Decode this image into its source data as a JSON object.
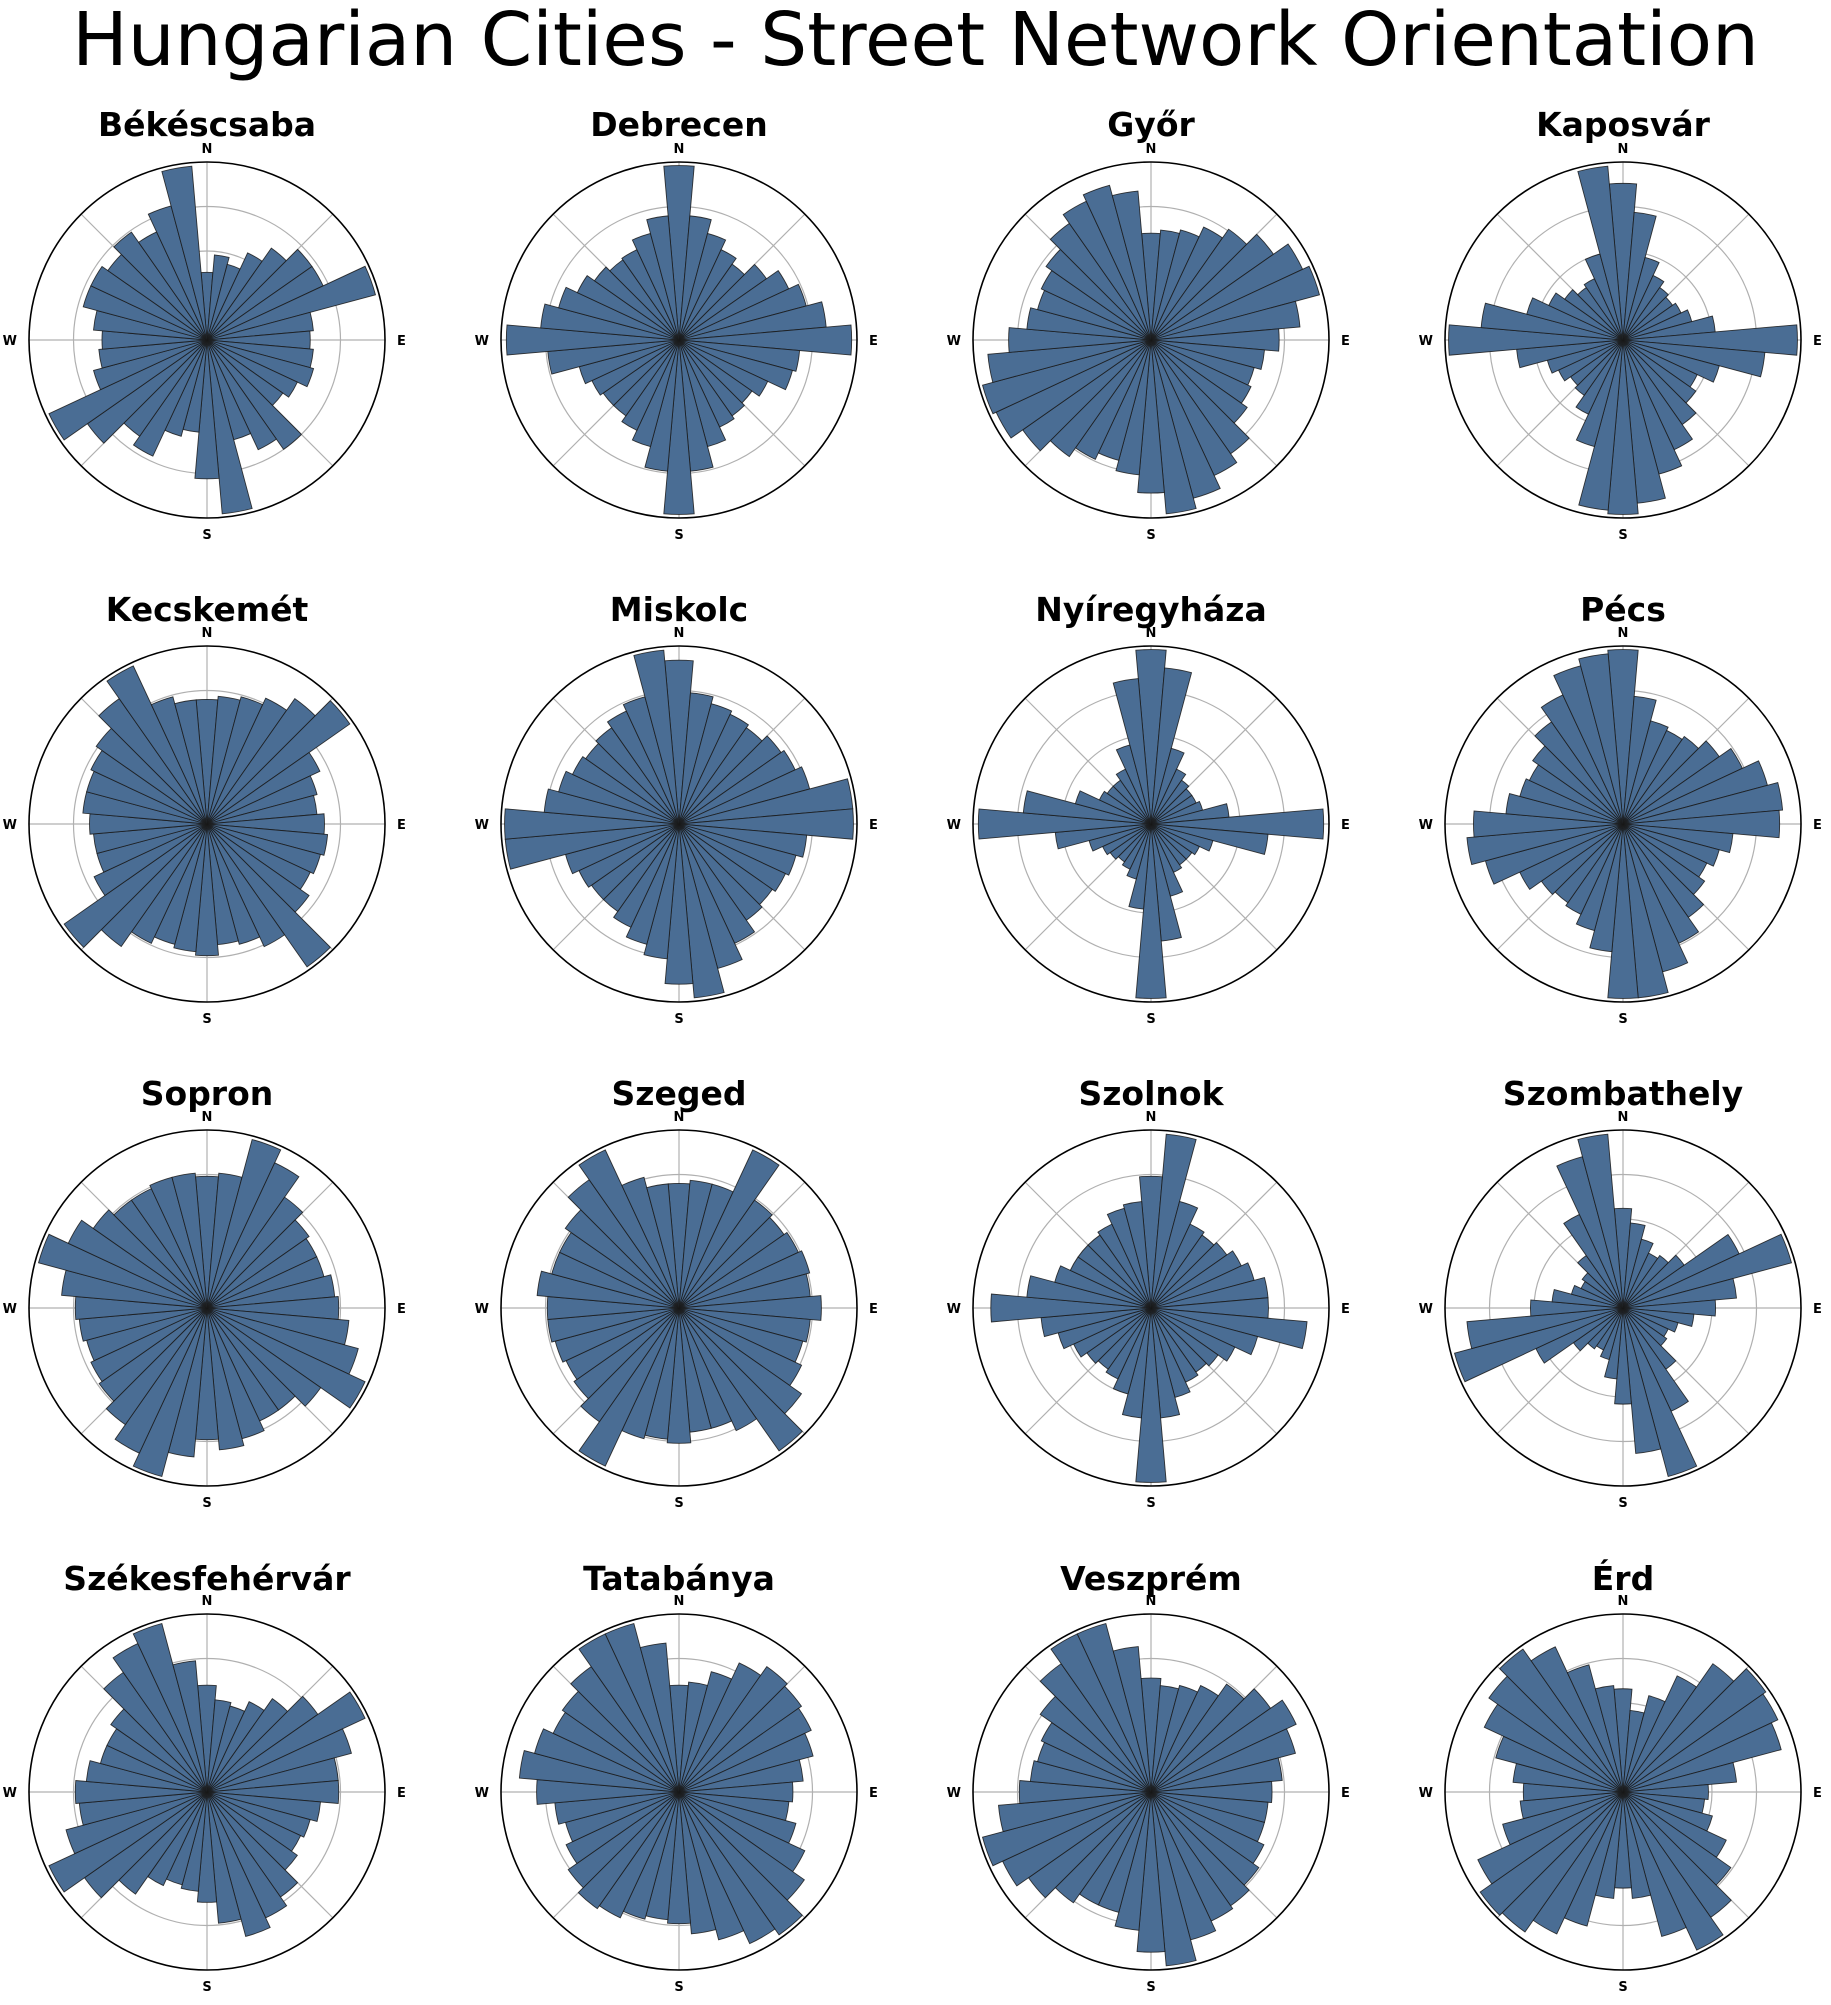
{
  "title": "Hungarian Cities - Street Network Orientation",
  "colors": {
    "bar_fill": "#4a6d94",
    "bar_edge": "#1a1a1a",
    "grid": "#b0b0b0",
    "frame": "#000000"
  },
  "chart_data": [
    {
      "type": "polar-bar",
      "title": "Békéscsaba",
      "direction_labels": [
        "N",
        "E",
        "S",
        "W"
      ],
      "bins": 36,
      "bin_start_deg": 0,
      "rlim": [
        0,
        1
      ],
      "gridlines": [
        0.25,
        0.5,
        0.75
      ],
      "values": [
        0.38,
        0.48,
        0.44,
        0.54,
        0.63,
        0.72,
        0.72,
        0.98,
        0.6,
        0.58,
        0.6,
        0.62,
        0.56,
        0.52,
        0.75,
        0.68,
        0.58,
        0.98,
        0.78,
        0.52,
        0.56,
        0.72,
        0.66,
        0.82,
        0.98,
        0.66,
        0.61,
        0.59,
        0.64,
        0.72,
        0.72,
        0.68,
        0.74,
        0.67,
        0.78,
        0.98
      ]
    },
    {
      "type": "polar-bar",
      "title": "Debrecen",
      "direction_labels": [
        "N",
        "E",
        "S",
        "W"
      ],
      "bins": 36,
      "bin_start_deg": 0,
      "rlim": [
        0,
        1
      ],
      "gridlines": [
        0.25,
        0.5,
        0.75
      ],
      "values": [
        0.98,
        0.7,
        0.62,
        0.56,
        0.52,
        0.6,
        0.68,
        0.74,
        0.83,
        0.97,
        0.68,
        0.66,
        0.55,
        0.5,
        0.52,
        0.54,
        0.62,
        0.74,
        0.98,
        0.74,
        0.62,
        0.56,
        0.52,
        0.52,
        0.54,
        0.58,
        0.74,
        0.97,
        0.78,
        0.7,
        0.63,
        0.58,
        0.55,
        0.56,
        0.62,
        0.7
      ]
    },
    {
      "type": "polar-bar",
      "title": "Győr",
      "direction_labels": [
        "N",
        "E",
        "S",
        "W"
      ],
      "bins": 36,
      "bin_start_deg": 0,
      "rlim": [
        0,
        1
      ],
      "gridlines": [
        0.25,
        0.5,
        0.75
      ],
      "values": [
        0.6,
        0.62,
        0.64,
        0.7,
        0.76,
        0.84,
        0.94,
        0.98,
        0.84,
        0.72,
        0.64,
        0.6,
        0.62,
        0.66,
        0.78,
        0.84,
        0.92,
        0.98,
        0.86,
        0.76,
        0.7,
        0.74,
        0.8,
        0.88,
        0.96,
        0.98,
        0.92,
        0.8,
        0.7,
        0.66,
        0.68,
        0.72,
        0.8,
        0.86,
        0.9,
        0.84
      ]
    },
    {
      "type": "polar-bar",
      "title": "Kaposvár",
      "direction_labels": [
        "N",
        "E",
        "S",
        "W"
      ],
      "bins": 36,
      "bin_start_deg": 0,
      "rlim": [
        0,
        1
      ],
      "gridlines": [
        0.25,
        0.5,
        0.75
      ],
      "values": [
        0.88,
        0.72,
        0.48,
        0.4,
        0.36,
        0.34,
        0.36,
        0.4,
        0.52,
        0.98,
        0.8,
        0.56,
        0.46,
        0.5,
        0.58,
        0.68,
        0.78,
        0.92,
        0.98,
        0.96,
        0.62,
        0.46,
        0.38,
        0.36,
        0.4,
        0.44,
        0.6,
        0.98,
        0.8,
        0.56,
        0.46,
        0.4,
        0.36,
        0.38,
        0.5,
        0.98
      ]
    },
    {
      "type": "polar-bar",
      "title": "Kecskemét",
      "direction_labels": [
        "N",
        "E",
        "S",
        "W"
      ],
      "bins": 36,
      "bin_start_deg": 0,
      "rlim": [
        0,
        1
      ],
      "gridlines": [
        0.25,
        0.5,
        0.75
      ],
      "values": [
        0.7,
        0.72,
        0.74,
        0.78,
        0.86,
        0.98,
        0.7,
        0.64,
        0.62,
        0.66,
        0.68,
        0.66,
        0.64,
        0.7,
        0.98,
        0.76,
        0.7,
        0.68,
        0.74,
        0.72,
        0.7,
        0.74,
        0.84,
        0.98,
        0.7,
        0.64,
        0.64,
        0.66,
        0.7,
        0.7,
        0.72,
        0.76,
        0.86,
        0.98,
        0.74,
        0.7
      ]
    },
    {
      "type": "polar-bar",
      "title": "Miskolc",
      "direction_labels": [
        "N",
        "E",
        "S",
        "W"
      ],
      "bins": 36,
      "bin_start_deg": 0,
      "rlim": [
        0,
        1
      ],
      "gridlines": [
        0.25,
        0.5,
        0.75
      ],
      "values": [
        0.92,
        0.74,
        0.7,
        0.68,
        0.66,
        0.7,
        0.72,
        0.76,
        0.98,
        0.98,
        0.72,
        0.68,
        0.66,
        0.64,
        0.66,
        0.74,
        0.84,
        0.98,
        0.9,
        0.76,
        0.7,
        0.64,
        0.6,
        0.6,
        0.62,
        0.66,
        0.98,
        0.98,
        0.76,
        0.7,
        0.66,
        0.64,
        0.66,
        0.7,
        0.74,
        0.98
      ]
    },
    {
      "type": "polar-bar",
      "title": "Nyíregyháza",
      "direction_labels": [
        "N",
        "E",
        "S",
        "W"
      ],
      "bins": 36,
      "bin_start_deg": 0,
      "rlim": [
        0,
        1
      ],
      "gridlines": [
        0.25,
        0.5,
        0.75
      ],
      "values": [
        0.98,
        0.88,
        0.44,
        0.34,
        0.3,
        0.28,
        0.28,
        0.3,
        0.44,
        0.97,
        0.66,
        0.36,
        0.3,
        0.28,
        0.28,
        0.3,
        0.42,
        0.66,
        0.98,
        0.48,
        0.32,
        0.28,
        0.26,
        0.28,
        0.3,
        0.36,
        0.54,
        0.97,
        0.72,
        0.44,
        0.32,
        0.3,
        0.3,
        0.34,
        0.46,
        0.82
      ]
    },
    {
      "type": "polar-bar",
      "title": "Pécs",
      "direction_labels": [
        "N",
        "E",
        "S",
        "W"
      ],
      "bins": 36,
      "bin_start_deg": 0,
      "rlim": [
        0,
        1
      ],
      "gridlines": [
        0.25,
        0.5,
        0.75
      ],
      "values": [
        0.98,
        0.72,
        0.6,
        0.58,
        0.6,
        0.66,
        0.74,
        0.84,
        0.9,
        0.88,
        0.62,
        0.56,
        0.52,
        0.56,
        0.64,
        0.74,
        0.86,
        0.98,
        0.98,
        0.72,
        0.62,
        0.56,
        0.54,
        0.56,
        0.64,
        0.8,
        0.88,
        0.84,
        0.66,
        0.6,
        0.58,
        0.62,
        0.7,
        0.8,
        0.92,
        0.96
      ]
    },
    {
      "type": "polar-bar",
      "title": "Sopron",
      "direction_labels": [
        "N",
        "E",
        "S",
        "W"
      ],
      "bins": 36,
      "bin_start_deg": 0,
      "rlim": [
        0,
        1
      ],
      "gridlines": [
        0.25,
        0.5,
        0.75
      ],
      "values": [
        0.74,
        0.76,
        0.98,
        0.9,
        0.76,
        0.7,
        0.68,
        0.68,
        0.72,
        0.74,
        0.8,
        0.88,
        0.98,
        0.78,
        0.7,
        0.7,
        0.76,
        0.8,
        0.74,
        0.84,
        0.98,
        0.9,
        0.8,
        0.74,
        0.72,
        0.7,
        0.72,
        0.74,
        0.82,
        0.98,
        0.86,
        0.78,
        0.74,
        0.74,
        0.76,
        0.76
      ]
    },
    {
      "type": "polar-bar",
      "title": "Szeged",
      "direction_labels": [
        "N",
        "E",
        "S",
        "W"
      ],
      "bins": 36,
      "bin_start_deg": 0,
      "rlim": [
        0,
        1
      ],
      "gridlines": [
        0.25,
        0.5,
        0.75
      ],
      "values": [
        0.7,
        0.72,
        0.72,
        0.98,
        0.74,
        0.72,
        0.74,
        0.76,
        0.74,
        0.8,
        0.74,
        0.72,
        0.76,
        0.84,
        0.98,
        0.76,
        0.7,
        0.7,
        0.76,
        0.74,
        0.76,
        0.98,
        0.78,
        0.72,
        0.7,
        0.72,
        0.74,
        0.74,
        0.8,
        0.74,
        0.74,
        0.78,
        0.88,
        0.98,
        0.76,
        0.7
      ]
    },
    {
      "type": "polar-bar",
      "title": "Szolnok",
      "direction_labels": [
        "N",
        "E",
        "S",
        "W"
      ],
      "bins": 36,
      "bin_start_deg": 0,
      "rlim": [
        0,
        1
      ],
      "gridlines": [
        0.25,
        0.5,
        0.75
      ],
      "values": [
        0.74,
        0.98,
        0.62,
        0.52,
        0.5,
        0.52,
        0.56,
        0.6,
        0.66,
        0.66,
        0.88,
        0.62,
        0.52,
        0.46,
        0.44,
        0.46,
        0.52,
        0.62,
        0.98,
        0.62,
        0.5,
        0.44,
        0.42,
        0.44,
        0.48,
        0.54,
        0.62,
        0.9,
        0.7,
        0.56,
        0.5,
        0.5,
        0.5,
        0.52,
        0.58,
        0.6
      ]
    },
    {
      "type": "polar-bar",
      "title": "Szombathely",
      "direction_labels": [
        "N",
        "E",
        "S",
        "W"
      ],
      "bins": 36,
      "bin_start_deg": 0,
      "rlim": [
        0,
        1
      ],
      "gridlines": [
        0.25,
        0.5,
        0.75
      ],
      "values": [
        0.56,
        0.48,
        0.4,
        0.34,
        0.36,
        0.42,
        0.72,
        0.98,
        0.64,
        0.52,
        0.4,
        0.32,
        0.28,
        0.3,
        0.42,
        0.64,
        0.98,
        0.82,
        0.54,
        0.4,
        0.3,
        0.26,
        0.28,
        0.34,
        0.54,
        0.98,
        0.88,
        0.52,
        0.4,
        0.3,
        0.26,
        0.28,
        0.36,
        0.58,
        0.88,
        0.98
      ]
    },
    {
      "type": "polar-bar",
      "title": "Székesfehérvár",
      "direction_labels": [
        "N",
        "E",
        "S",
        "W"
      ],
      "bins": 36,
      "bin_start_deg": 0,
      "rlim": [
        0,
        1
      ],
      "gridlines": [
        0.25,
        0.5,
        0.75
      ],
      "values": [
        0.6,
        0.52,
        0.5,
        0.56,
        0.64,
        0.76,
        0.98,
        0.84,
        0.74,
        0.74,
        0.64,
        0.6,
        0.58,
        0.62,
        0.72,
        0.78,
        0.84,
        0.74,
        0.62,
        0.56,
        0.54,
        0.58,
        0.7,
        0.84,
        0.98,
        0.82,
        0.72,
        0.74,
        0.68,
        0.62,
        0.62,
        0.66,
        0.82,
        0.92,
        0.98,
        0.74
      ]
    },
    {
      "type": "polar-bar",
      "title": "Tatabánya",
      "direction_labels": [
        "N",
        "E",
        "S",
        "W"
      ],
      "bins": 36,
      "bin_start_deg": 0,
      "rlim": [
        0,
        1
      ],
      "gridlines": [
        0.25,
        0.5,
        0.75
      ],
      "values": [
        0.6,
        0.62,
        0.7,
        0.8,
        0.86,
        0.84,
        0.82,
        0.78,
        0.7,
        0.64,
        0.62,
        0.68,
        0.78,
        0.86,
        0.98,
        0.94,
        0.86,
        0.8,
        0.74,
        0.72,
        0.74,
        0.78,
        0.8,
        0.76,
        0.7,
        0.66,
        0.7,
        0.8,
        0.9,
        0.84,
        0.78,
        0.8,
        0.86,
        0.98,
        0.98,
        0.84
      ]
    },
    {
      "type": "polar-bar",
      "title": "Veszprém",
      "direction_labels": [
        "N",
        "E",
        "S",
        "W"
      ],
      "bins": 36,
      "bin_start_deg": 0,
      "rlim": [
        0,
        1
      ],
      "gridlines": [
        0.25,
        0.5,
        0.75
      ],
      "values": [
        0.64,
        0.6,
        0.62,
        0.66,
        0.74,
        0.82,
        0.9,
        0.84,
        0.74,
        0.68,
        0.66,
        0.66,
        0.7,
        0.74,
        0.78,
        0.8,
        0.86,
        0.98,
        0.9,
        0.78,
        0.7,
        0.7,
        0.76,
        0.84,
        0.92,
        0.98,
        0.86,
        0.74,
        0.68,
        0.66,
        0.68,
        0.76,
        0.88,
        0.98,
        0.98,
        0.82
      ]
    },
    {
      "type": "polar-bar",
      "title": "Érd",
      "direction_labels": [
        "N",
        "E",
        "S",
        "W"
      ],
      "bins": 36,
      "bin_start_deg": 0,
      "rlim": [
        0,
        1
      ],
      "gridlines": [
        0.25,
        0.5,
        0.75
      ],
      "values": [
        0.58,
        0.46,
        0.56,
        0.72,
        0.88,
        0.98,
        0.96,
        0.92,
        0.64,
        0.48,
        0.46,
        0.52,
        0.64,
        0.74,
        0.86,
        0.98,
        0.84,
        0.6,
        0.54,
        0.6,
        0.78,
        0.88,
        0.96,
        0.98,
        0.9,
        0.7,
        0.58,
        0.56,
        0.62,
        0.74,
        0.86,
        0.92,
        0.98,
        0.9,
        0.74,
        0.6
      ]
    }
  ]
}
